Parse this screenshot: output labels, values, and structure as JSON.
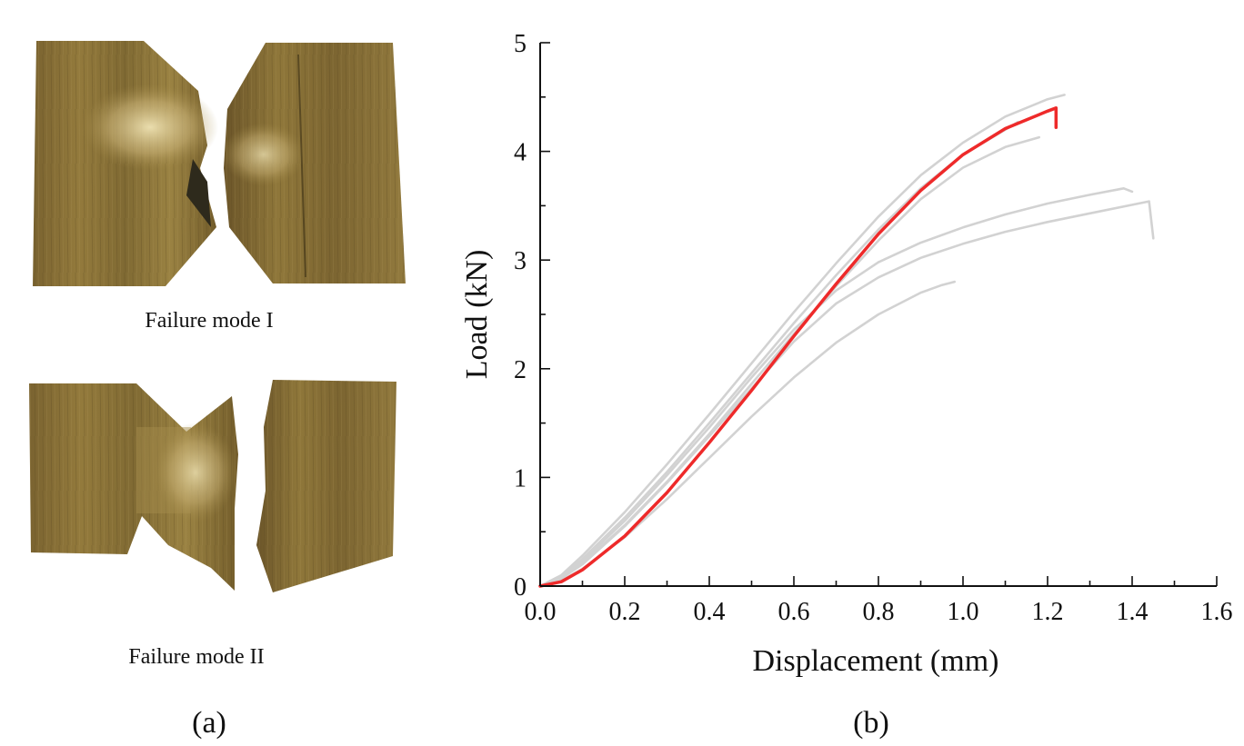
{
  "panel_a": {
    "label": "(a)",
    "specimens": [
      {
        "caption": "Failure mode I"
      },
      {
        "caption": "Failure mode II"
      }
    ],
    "colors": {
      "wood_dark": "#6e5828",
      "wood_light": "#a48c4a",
      "highlight": "#e8dcae"
    }
  },
  "panel_b": {
    "label": "(b)",
    "chart_data": {
      "type": "line",
      "xlabel": "Displacement (mm)",
      "ylabel": "Load (kN)",
      "xlim": [
        0,
        1.6
      ],
      "ylim": [
        0,
        5
      ],
      "x_ticks": [
        "0.0",
        "0.2",
        "0.4",
        "0.6",
        "0.8",
        "1.0",
        "1.2",
        "1.4",
        "1.6"
      ],
      "y_ticks": [
        "0",
        "1",
        "2",
        "3",
        "4",
        "5"
      ],
      "grid": false,
      "series": [
        {
          "color": "#d2d2d2",
          "points": [
            [
              0,
              0
            ],
            [
              0.05,
              0.1
            ],
            [
              0.1,
              0.28
            ],
            [
              0.2,
              0.68
            ],
            [
              0.3,
              1.12
            ],
            [
              0.4,
              1.58
            ],
            [
              0.5,
              2.05
            ],
            [
              0.6,
              2.52
            ],
            [
              0.7,
              2.97
            ],
            [
              0.8,
              3.4
            ],
            [
              0.9,
              3.78
            ],
            [
              1.0,
              4.08
            ],
            [
              1.1,
              4.32
            ],
            [
              1.2,
              4.48
            ],
            [
              1.24,
              4.52
            ]
          ]
        },
        {
          "color": "#d2d2d2",
          "points": [
            [
              0,
              0
            ],
            [
              0.05,
              0.09
            ],
            [
              0.1,
              0.25
            ],
            [
              0.2,
              0.63
            ],
            [
              0.3,
              1.05
            ],
            [
              0.4,
              1.5
            ],
            [
              0.5,
              1.96
            ],
            [
              0.6,
              2.42
            ],
            [
              0.7,
              2.86
            ],
            [
              0.8,
              3.28
            ],
            [
              0.9,
              3.66
            ],
            [
              1.0,
              3.97
            ],
            [
              1.1,
              4.2
            ],
            [
              1.13,
              4.27
            ]
          ]
        },
        {
          "color": "#d2d2d2",
          "points": [
            [
              0,
              0
            ],
            [
              0.05,
              0.07
            ],
            [
              0.1,
              0.21
            ],
            [
              0.2,
              0.56
            ],
            [
              0.3,
              0.96
            ],
            [
              0.4,
              1.4
            ],
            [
              0.5,
              1.86
            ],
            [
              0.6,
              2.32
            ],
            [
              0.7,
              2.76
            ],
            [
              0.8,
              3.18
            ],
            [
              0.9,
              3.56
            ],
            [
              1.0,
              3.85
            ],
            [
              1.1,
              4.04
            ],
            [
              1.18,
              4.13
            ]
          ]
        },
        {
          "color": "#d2d2d2",
          "points": [
            [
              0,
              0
            ],
            [
              0.05,
              0.08
            ],
            [
              0.1,
              0.23
            ],
            [
              0.2,
              0.6
            ],
            [
              0.3,
              1.02
            ],
            [
              0.4,
              1.46
            ],
            [
              0.5,
              1.92
            ],
            [
              0.6,
              2.36
            ],
            [
              0.7,
              2.72
            ],
            [
              0.8,
              2.98
            ],
            [
              0.9,
              3.16
            ],
            [
              1.0,
              3.3
            ],
            [
              1.1,
              3.42
            ],
            [
              1.2,
              3.52
            ],
            [
              1.3,
              3.6
            ],
            [
              1.38,
              3.66
            ],
            [
              1.4,
              3.63
            ]
          ]
        },
        {
          "color": "#d2d2d2",
          "points": [
            [
              0,
              0
            ],
            [
              0.05,
              0.07
            ],
            [
              0.1,
              0.2
            ],
            [
              0.2,
              0.55
            ],
            [
              0.3,
              0.95
            ],
            [
              0.4,
              1.38
            ],
            [
              0.5,
              1.82
            ],
            [
              0.6,
              2.25
            ],
            [
              0.7,
              2.6
            ],
            [
              0.8,
              2.84
            ],
            [
              0.9,
              3.02
            ],
            [
              1.0,
              3.15
            ],
            [
              1.1,
              3.26
            ],
            [
              1.2,
              3.35
            ],
            [
              1.3,
              3.43
            ],
            [
              1.44,
              3.54
            ],
            [
              1.45,
              3.2
            ]
          ]
        },
        {
          "color": "#d2d2d2",
          "points": [
            [
              0,
              0
            ],
            [
              0.05,
              0.05
            ],
            [
              0.1,
              0.16
            ],
            [
              0.2,
              0.45
            ],
            [
              0.3,
              0.8
            ],
            [
              0.4,
              1.18
            ],
            [
              0.5,
              1.56
            ],
            [
              0.6,
              1.92
            ],
            [
              0.7,
              2.24
            ],
            [
              0.8,
              2.5
            ],
            [
              0.9,
              2.7
            ],
            [
              0.95,
              2.77
            ],
            [
              0.98,
              2.8
            ]
          ]
        },
        {
          "color": "#ee2a2a",
          "points": [
            [
              0,
              0
            ],
            [
              0.05,
              0.04
            ],
            [
              0.1,
              0.15
            ],
            [
              0.2,
              0.46
            ],
            [
              0.3,
              0.86
            ],
            [
              0.4,
              1.32
            ],
            [
              0.5,
              1.8
            ],
            [
              0.6,
              2.3
            ],
            [
              0.7,
              2.78
            ],
            [
              0.8,
              3.24
            ],
            [
              0.9,
              3.64
            ],
            [
              1.0,
              3.97
            ],
            [
              1.1,
              4.21
            ],
            [
              1.2,
              4.37
            ],
            [
              1.22,
              4.4
            ],
            [
              1.22,
              4.22
            ]
          ]
        }
      ]
    }
  }
}
